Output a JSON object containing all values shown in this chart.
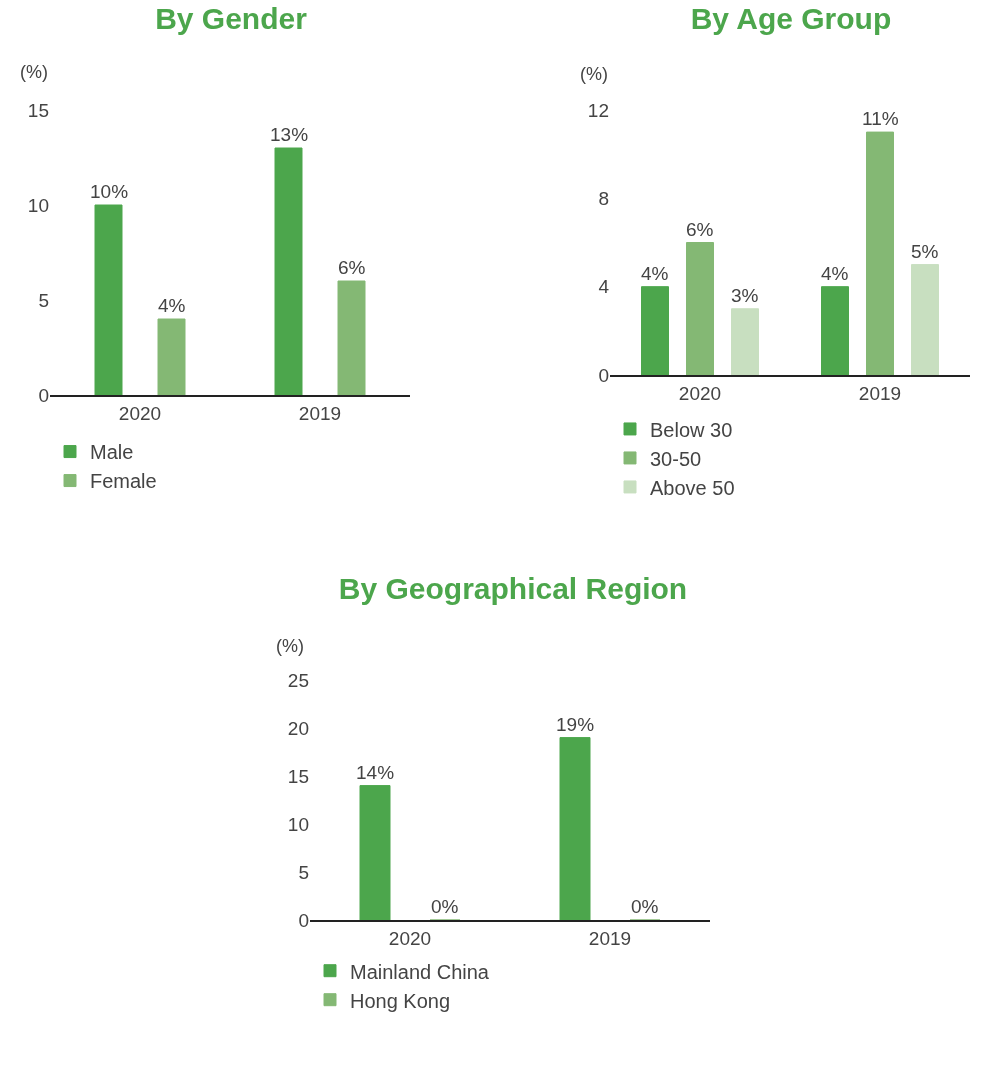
{
  "chart_data": [
    {
      "type": "bar",
      "title": "By Gender",
      "ylabel": "(%)",
      "categories": [
        "2020",
        "2019"
      ],
      "ylim": [
        0,
        15
      ],
      "yticks": [
        0,
        5,
        10,
        15
      ],
      "grid": false,
      "legend": "bottom left",
      "series": [
        {
          "name": "Male",
          "color": "#4ca64c",
          "values": [
            10,
            13
          ],
          "value_labels": [
            "10%",
            "13%"
          ]
        },
        {
          "name": "Female",
          "color": "#84b874",
          "values": [
            4,
            6
          ],
          "value_labels": [
            "4%",
            "6%"
          ]
        }
      ]
    },
    {
      "type": "bar",
      "title": "By Age Group",
      "ylabel": "(%)",
      "categories": [
        "2020",
        "2019"
      ],
      "ylim": [
        0,
        12
      ],
      "yticks": [
        0,
        4,
        8,
        12
      ],
      "grid": false,
      "legend": "bottom left",
      "series": [
        {
          "name": "Below 30",
          "color": "#4ca64c",
          "values": [
            4,
            4
          ],
          "value_labels": [
            "4%",
            "4%"
          ]
        },
        {
          "name": "30-50",
          "color": "#84b874",
          "values": [
            6,
            11
          ],
          "value_labels": [
            "6%",
            "11%"
          ]
        },
        {
          "name": "Above 50",
          "color": "#c8dfc0",
          "values": [
            3,
            5
          ],
          "value_labels": [
            "3%",
            "5%"
          ]
        }
      ]
    },
    {
      "type": "bar",
      "title": "By Geographical Region",
      "ylabel": "(%)",
      "categories": [
        "2020",
        "2019"
      ],
      "ylim": [
        0,
        25
      ],
      "yticks": [
        0,
        5,
        10,
        15,
        20,
        25
      ],
      "grid": false,
      "legend": "bottom left",
      "series": [
        {
          "name": "Mainland China",
          "color": "#4ca64c",
          "values": [
            14,
            19
          ],
          "value_labels": [
            "14%",
            "19%"
          ]
        },
        {
          "name": "Hong Kong",
          "color": "#84b874",
          "values": [
            0,
            0
          ],
          "value_labels": [
            "0%",
            "0%"
          ]
        }
      ]
    }
  ]
}
